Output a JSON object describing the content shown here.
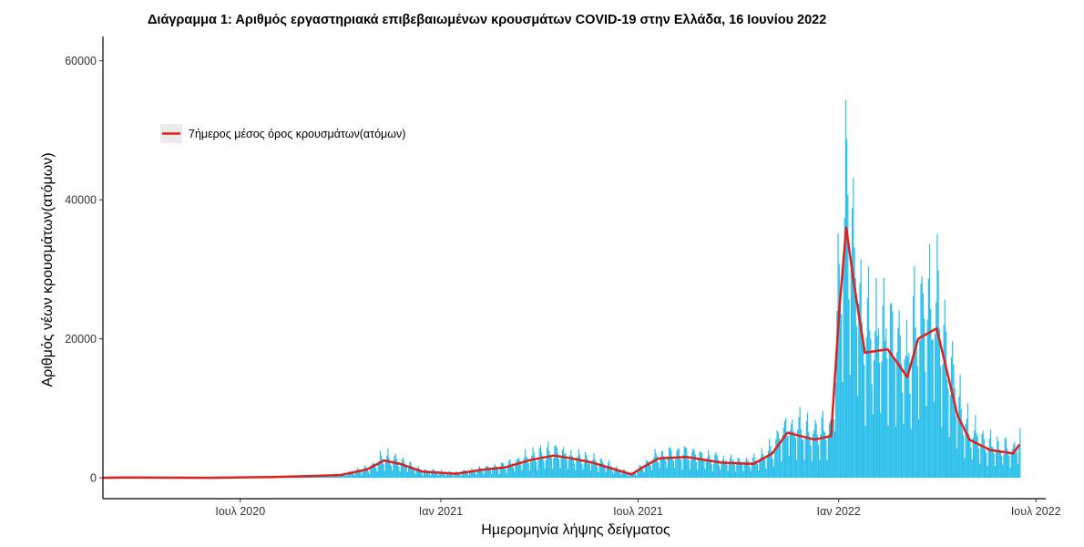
{
  "chart_data": {
    "type": "bar",
    "title": "Διάγραμμα 1: Αριθμός εργαστηριακά επιβεβαιωμένων κρουσμάτων COVID-19 στην Ελλάδα, 16 Ιουνίου 2022",
    "xlabel": "Ημερομηνία λήψης δείγματος",
    "ylabel": "Αριθμός νέων κρουσμάτων(ατόμων)",
    "x_range": [
      "2020-02-26",
      "2022-07-10"
    ],
    "ylim": [
      -3000,
      63500
    ],
    "x_ticks": [
      {
        "date": "2020-07-01",
        "label": "Ιουλ 2020"
      },
      {
        "date": "2021-01-01",
        "label": "Ιαν 2021"
      },
      {
        "date": "2021-07-01",
        "label": "Ιουλ 2021"
      },
      {
        "date": "2022-01-01",
        "label": "Ιαν 2022"
      },
      {
        "date": "2022-07-01",
        "label": "Ιουλ 2022"
      }
    ],
    "y_ticks": [
      0,
      20000,
      40000,
      60000
    ],
    "y_tick_labels": [
      "0",
      "20000",
      "40000",
      "60000"
    ],
    "grid": false,
    "legend": {
      "position": "top-left",
      "entries": [
        "7ήμερος μέσος όρος κρουσμάτων(ατόμων)"
      ]
    },
    "colors": {
      "bars": "#29BFEA",
      "line": "#E0201C",
      "legend_bg": "#EBEBEB"
    },
    "series": [
      {
        "type": "bar",
        "description": "daily cases (approximate weekly-average anchor profile; daily bars fluctuate around it with weekly peaks)",
        "points": [
          [
            "2020-02-26",
            0
          ],
          [
            "2020-03-20",
            60
          ],
          [
            "2020-04-15",
            30
          ],
          [
            "2020-06-01",
            10
          ],
          [
            "2020-08-01",
            120
          ],
          [
            "2020-09-01",
            250
          ],
          [
            "2020-10-01",
            400
          ],
          [
            "2020-10-25",
            1200
          ],
          [
            "2020-11-10",
            2500
          ],
          [
            "2020-11-25",
            2000
          ],
          [
            "2020-12-15",
            900
          ],
          [
            "2021-01-15",
            600
          ],
          [
            "2021-02-10",
            1200
          ],
          [
            "2021-03-01",
            1500
          ],
          [
            "2021-03-25",
            2600
          ],
          [
            "2021-04-15",
            3200
          ],
          [
            "2021-05-01",
            2800
          ],
          [
            "2021-05-20",
            2200
          ],
          [
            "2021-06-10",
            1200
          ],
          [
            "2021-06-25",
            500
          ],
          [
            "2021-07-05",
            1500
          ],
          [
            "2021-07-20",
            2800
          ],
          [
            "2021-08-15",
            3000
          ],
          [
            "2021-09-15",
            2200
          ],
          [
            "2021-10-15",
            2000
          ],
          [
            "2021-11-01",
            3500
          ],
          [
            "2021-11-15",
            6500
          ],
          [
            "2021-12-10",
            5500
          ],
          [
            "2021-12-25",
            6000
          ],
          [
            "2022-01-02",
            25000
          ],
          [
            "2022-01-08",
            36000
          ],
          [
            "2022-01-15",
            28000
          ],
          [
            "2022-01-25",
            18000
          ],
          [
            "2022-02-15",
            18500
          ],
          [
            "2022-03-05",
            14500
          ],
          [
            "2022-03-15",
            20000
          ],
          [
            "2022-04-01",
            21500
          ],
          [
            "2022-04-20",
            9000
          ],
          [
            "2022-05-01",
            5500
          ],
          [
            "2022-05-20",
            4000
          ],
          [
            "2022-06-10",
            3500
          ],
          [
            "2022-06-16",
            4800
          ]
        ]
      },
      {
        "type": "line",
        "name": "7ήμερος μέσος όρος κρουσμάτων(ατόμων)",
        "points": [
          [
            "2020-02-26",
            0
          ],
          [
            "2020-03-20",
            60
          ],
          [
            "2020-04-15",
            30
          ],
          [
            "2020-06-01",
            10
          ],
          [
            "2020-08-01",
            120
          ],
          [
            "2020-09-01",
            250
          ],
          [
            "2020-10-01",
            400
          ],
          [
            "2020-10-25",
            1200
          ],
          [
            "2020-11-10",
            2500
          ],
          [
            "2020-11-25",
            2000
          ],
          [
            "2020-12-15",
            900
          ],
          [
            "2021-01-15",
            600
          ],
          [
            "2021-02-10",
            1200
          ],
          [
            "2021-03-01",
            1500
          ],
          [
            "2021-03-25",
            2600
          ],
          [
            "2021-04-15",
            3200
          ],
          [
            "2021-05-01",
            2800
          ],
          [
            "2021-05-20",
            2200
          ],
          [
            "2021-06-10",
            1200
          ],
          [
            "2021-06-25",
            500
          ],
          [
            "2021-07-05",
            1500
          ],
          [
            "2021-07-20",
            2800
          ],
          [
            "2021-08-15",
            3000
          ],
          [
            "2021-09-15",
            2200
          ],
          [
            "2021-10-15",
            2000
          ],
          [
            "2021-11-01",
            3500
          ],
          [
            "2021-11-15",
            6500
          ],
          [
            "2021-12-10",
            5500
          ],
          [
            "2021-12-25",
            6000
          ],
          [
            "2022-01-02",
            25000
          ],
          [
            "2022-01-08",
            36000
          ],
          [
            "2022-01-15",
            28000
          ],
          [
            "2022-01-25",
            18000
          ],
          [
            "2022-02-15",
            18500
          ],
          [
            "2022-03-05",
            14500
          ],
          [
            "2022-03-15",
            20000
          ],
          [
            "2022-04-01",
            21500
          ],
          [
            "2022-04-20",
            9000
          ],
          [
            "2022-05-01",
            5500
          ],
          [
            "2022-05-20",
            4000
          ],
          [
            "2022-06-10",
            3500
          ],
          [
            "2022-06-16",
            4800
          ]
        ]
      }
    ]
  }
}
